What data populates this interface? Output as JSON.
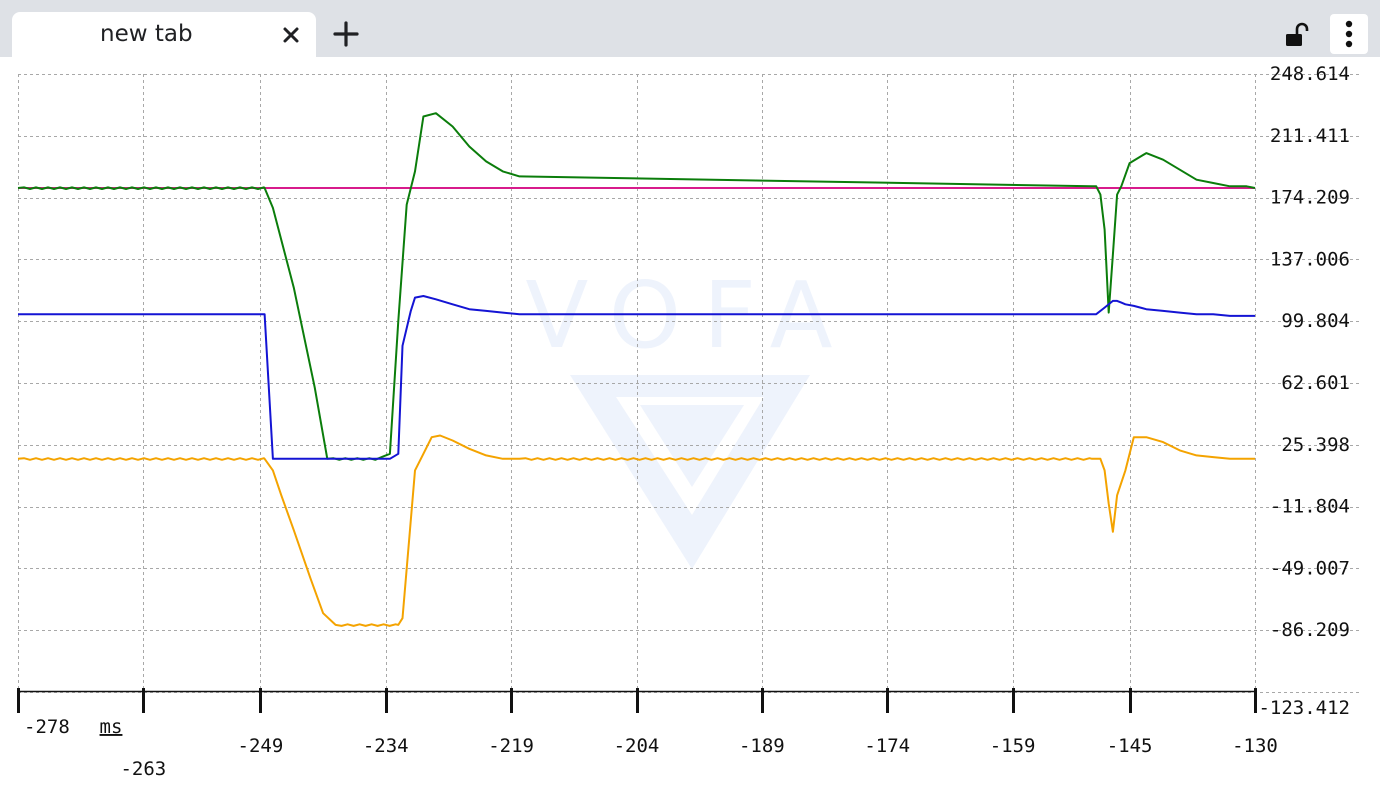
{
  "tab": {
    "title": "new tab",
    "close_icon": "close-icon",
    "new_tab_icon": "plus-icon"
  },
  "toolbar": {
    "lock_icon": "unlock-icon",
    "menu_icon": "more-vertical-icon"
  },
  "watermark": {
    "text": "VOFA"
  },
  "chart_data": {
    "type": "line",
    "xlabel": "ms",
    "xlim": [
      -278,
      -130
    ],
    "ylim": [
      -123.412,
      248.614
    ],
    "grid": true,
    "x_ticks": [
      {
        "value": -278,
        "label": "-278"
      },
      {
        "value": -263,
        "label": "-263"
      },
      {
        "value": -249,
        "label": "-249"
      },
      {
        "value": -234,
        "label": "-234"
      },
      {
        "value": -219,
        "label": "-219"
      },
      {
        "value": -204,
        "label": "-204"
      },
      {
        "value": -189,
        "label": "-189"
      },
      {
        "value": -174,
        "label": "-174"
      },
      {
        "value": -159,
        "label": "-159"
      },
      {
        "value": -145,
        "label": "-145"
      },
      {
        "value": -130,
        "label": "-130"
      }
    ],
    "y_ticks": [
      {
        "value": 248.614,
        "label": "248.614"
      },
      {
        "value": 211.411,
        "label": "211.411"
      },
      {
        "value": 174.209,
        "label": "174.209"
      },
      {
        "value": 137.006,
        "label": "137.006"
      },
      {
        "value": 99.804,
        "label": "99.804"
      },
      {
        "value": 62.601,
        "label": "62.601"
      },
      {
        "value": 25.398,
        "label": "25.398"
      },
      {
        "value": -11.804,
        "label": "-11.804"
      },
      {
        "value": -49.007,
        "label": "-49.007"
      },
      {
        "value": -86.209,
        "label": "-86.209"
      },
      {
        "value": -123.412,
        "label": "-123.412"
      }
    ],
    "series": [
      {
        "color": "#d81b8c",
        "x": [
          -278,
          -130
        ],
        "y": [
          180,
          180
        ]
      },
      {
        "color": "#0b7d0b",
        "x": [
          -278,
          -248.5,
          -247.5,
          -245,
          -242.5,
          -241,
          -235,
          -233.5,
          -232.5,
          -231.5,
          -230.5,
          -229.5,
          -228,
          -226,
          -224,
          -222,
          -220,
          -218,
          -149.5,
          -149,
          -148.5,
          -148,
          -147.5,
          -147,
          -146.5,
          -146,
          -145,
          -143,
          -141,
          -139,
          -137,
          -135,
          -133,
          -131,
          -130
        ],
        "y": [
          180,
          180,
          168,
          120,
          60,
          17,
          17,
          20,
          100,
          170,
          190,
          223,
          225,
          217,
          205,
          196,
          190,
          187,
          181,
          181,
          176,
          155,
          105,
          140,
          176,
          181,
          195,
          201,
          197,
          191,
          185,
          183,
          181,
          181,
          180
        ],
        "noise": true
      },
      {
        "color": "#f4a300",
        "x": [
          -278,
          -248.5,
          -247.5,
          -246.5,
          -245,
          -243,
          -241.5,
          -240,
          -232.5,
          -232,
          -231,
          -230.5,
          -229.5,
          -228.5,
          -227.5,
          -226,
          -224,
          -222,
          -220,
          -218,
          -149.5,
          -148.5,
          -148,
          -147.5,
          -147,
          -146.5,
          -145.5,
          -144.5,
          -143,
          -141,
          -139,
          -137,
          -135,
          -133,
          -131,
          -130
        ],
        "y": [
          17,
          17,
          10,
          -5,
          -26,
          -55,
          -76,
          -83,
          -83,
          -79,
          -20,
          10,
          20,
          30,
          31,
          28,
          23,
          19,
          17,
          17,
          17,
          17,
          10,
          -10,
          -27,
          -5,
          10,
          30,
          30,
          27,
          22,
          19,
          18,
          17,
          17,
          17
        ],
        "noise": true
      },
      {
        "color": "#1414d4",
        "x": [
          -278,
          -248.5,
          -247.5,
          -233.5,
          -232.5,
          -232,
          -231,
          -230.5,
          -229.5,
          -228,
          -226,
          -224,
          -222,
          -220,
          -218,
          -150,
          -149,
          -148,
          -147,
          -146.5,
          -146,
          -145.5,
          -144.5,
          -143,
          -141,
          -139,
          -137,
          -135,
          -133,
          -131,
          -130
        ],
        "y": [
          104,
          104,
          17,
          17,
          20,
          85,
          106,
          114,
          115,
          113,
          110,
          107,
          106,
          105,
          104,
          104,
          104,
          108,
          112,
          112,
          111,
          110,
          109,
          107,
          106,
          105,
          104,
          104,
          103,
          103,
          103
        ],
        "noise": false
      }
    ]
  }
}
